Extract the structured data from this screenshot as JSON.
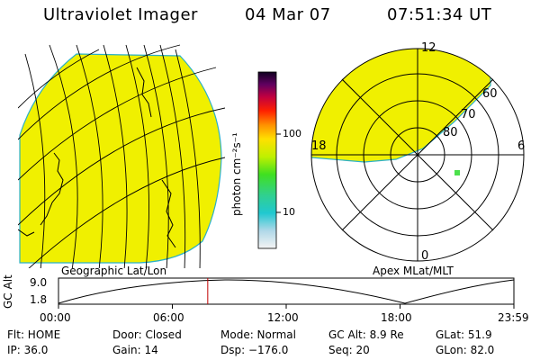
{
  "header": {
    "title": "Ultraviolet Imager",
    "date": "04 Mar 07",
    "time": "07:51:34 UT"
  },
  "colors": {
    "fill": "#f0f000",
    "edge": "#2ab0c8",
    "speck": "#4ce04c",
    "marker": "#c00000"
  },
  "colorbar": {
    "unit_label": "photon cm⁻²s⁻¹",
    "tick_100": "100",
    "tick_10": "10"
  },
  "polar": {
    "labels": {
      "top": "12",
      "right": "6",
      "left": "18",
      "bottom": "0"
    },
    "lat_labels": [
      "60",
      "70",
      "80"
    ]
  },
  "panels": {
    "left_caption": "Geographic Lat/Lon",
    "right_caption": "Apex MLat/MLT"
  },
  "alt_plot": {
    "ylabel": "GC Alt",
    "ytick_top": "9.0",
    "ytick_bottom": "1.8",
    "xticks": [
      "00:00",
      "06:00",
      "12:00",
      "18:00",
      "23:59"
    ],
    "marker_time_hours": 7.86
  },
  "info": {
    "flt": "Flt: HOME",
    "door": "Door: Closed",
    "mode": "Mode: Normal",
    "gc_alt": "GC Alt: 8.9 Re",
    "glat": "GLat:  51.9",
    "ip": "IP: 36.0",
    "gain": "Gain: 14",
    "dsp": "Dsp: −176.0",
    "seq": "Seq: 20",
    "glon": "GLon:  82.0"
  }
}
